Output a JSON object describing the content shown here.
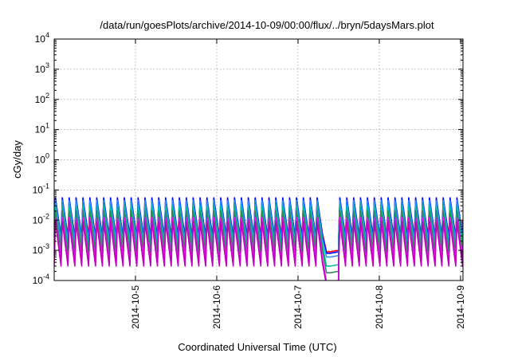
{
  "chart_data": {
    "type": "line",
    "title": "/data/run/goesPlots/archive/2014-10-09/00:00/flux/../bryn/5daysMars.plot",
    "xlabel": "Coordinated Universal Time (UTC)",
    "ylabel": "cGy/day",
    "yscale": "log",
    "ylim": [
      0.0001,
      10000
    ],
    "xlim_days": [
      4.0,
      9.03
    ],
    "x_ticks": [
      {
        "label": "2014-10-5",
        "day": 5
      },
      {
        "label": "2014-10-6",
        "day": 6
      },
      {
        "label": "2014-10-7",
        "day": 7
      },
      {
        "label": "2014-10-8",
        "day": 8
      },
      {
        "label": "2014-10-9",
        "day": 9
      }
    ],
    "y_ticks": [
      {
        "base": "10",
        "exp": "4",
        "value": 10000
      },
      {
        "base": "10",
        "exp": "3",
        "value": 1000
      },
      {
        "base": "10",
        "exp": "2",
        "value": 100
      },
      {
        "base": "10",
        "exp": "1",
        "value": 10
      },
      {
        "base": "10",
        "exp": "0",
        "value": 1
      },
      {
        "base": "10",
        "exp": "-1",
        "value": 0.1
      },
      {
        "base": "10",
        "exp": "-2",
        "value": 0.01
      },
      {
        "base": "10",
        "exp": "-3",
        "value": 0.001
      },
      {
        "base": "10",
        "exp": "-4",
        "value": 0.0001
      }
    ],
    "grid": true,
    "cycles_per_day": 11.8,
    "gap_days": [
      7.3,
      7.5
    ],
    "series": [
      {
        "color": "#ff0000",
        "peak": 0.05,
        "trough": 0.003,
        "gap_min": 0.0009
      },
      {
        "color": "#0000ff",
        "peak": 0.055,
        "trough": 0.0025,
        "gap_min": 0.0008
      },
      {
        "color": "#1e90ff",
        "peak": 0.045,
        "trough": 0.002,
        "gap_min": 0.0006
      },
      {
        "color": "#00bfa0",
        "peak": 0.03,
        "trough": 0.0012,
        "gap_min": 0.0003
      },
      {
        "color": "#2e8b57",
        "peak": 0.02,
        "trough": 0.0008,
        "gap_min": 0.00018
      },
      {
        "color": "#ff00ff",
        "peak": 0.012,
        "trough": 0.0004,
        "gap_min": 9e-05
      },
      {
        "color": "#c000c0",
        "peak": 0.009,
        "trough": 0.0003,
        "gap_min": 7e-05
      }
    ]
  }
}
